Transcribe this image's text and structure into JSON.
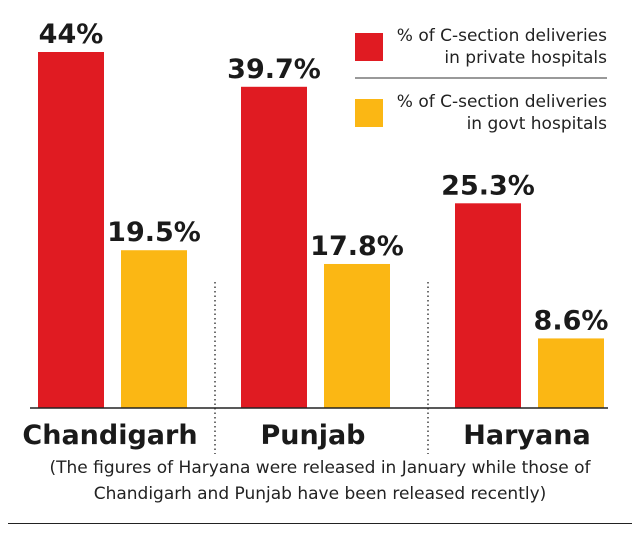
{
  "chart_data": {
    "type": "bar",
    "categories": [
      "Chandigarh",
      "Punjab",
      "Haryana"
    ],
    "series": [
      {
        "name": "% of C-section deliveries in private hospitals",
        "legend_lines": [
          "% of C-section deliveries",
          "in private hospitals"
        ],
        "values": [
          44,
          39.7,
          25.3
        ],
        "labels": [
          "44%",
          "39.7%",
          "25.3%"
        ],
        "color": "#e01b22"
      },
      {
        "name": "% of C-section deliveries in govt hospitals",
        "legend_lines": [
          "% of C-section deliveries",
          "in govt hospitals"
        ],
        "values": [
          19.5,
          17.8,
          8.6
        ],
        "labels": [
          "19.5%",
          "17.8%",
          "8.6%"
        ],
        "color": "#fbb714"
      }
    ],
    "legend_position": "top-right",
    "grid": false,
    "ylim": [
      0,
      44
    ],
    "note_lines": [
      "(The figures of Haryana were released in January while those of",
      "Chandigarh and Punjab have been released recently)"
    ]
  }
}
